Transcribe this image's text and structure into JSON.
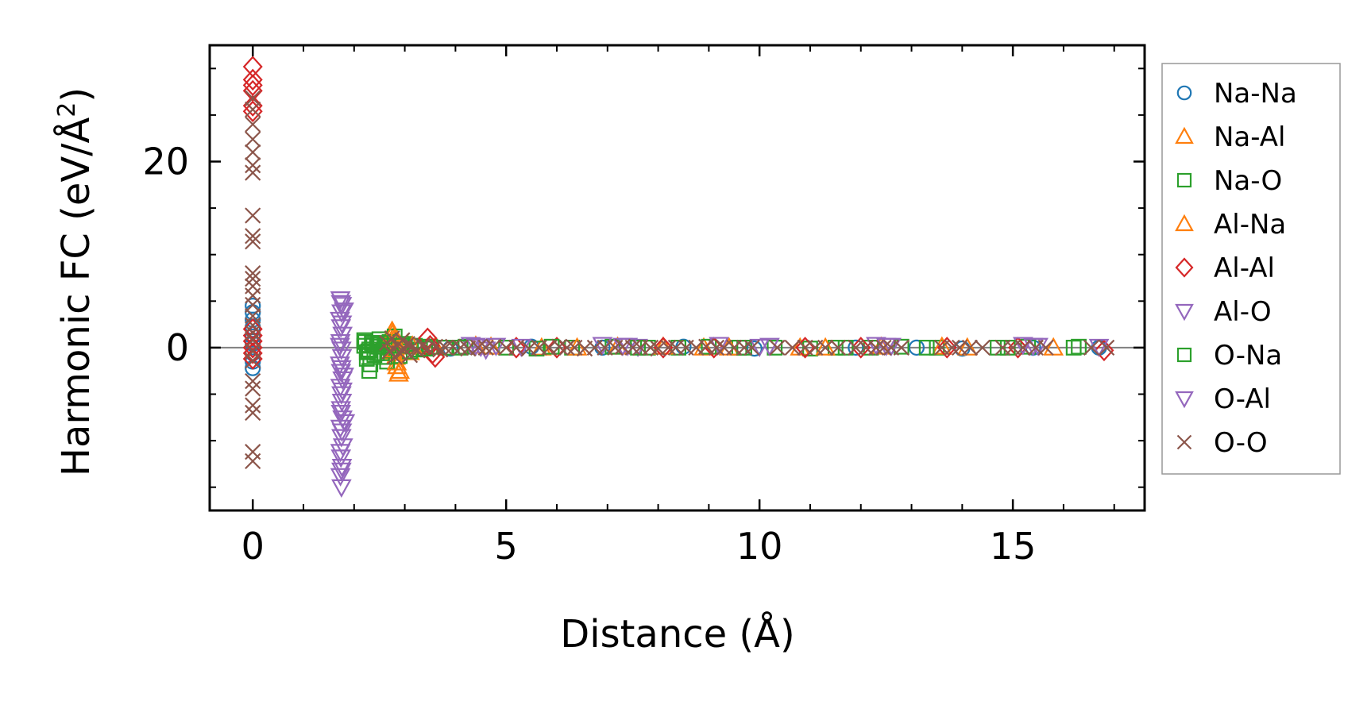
{
  "chart_data": {
    "type": "scatter",
    "xlabel": "Distance (Å)",
    "ylabel_main": "Harmonic FC (eV/Å",
    "ylabel_sup": "2",
    "ylabel_close": ")",
    "xlim": [
      -0.85,
      17.6
    ],
    "ylim": [
      -17.5,
      32.5
    ],
    "x_ticks": [
      0,
      5,
      10,
      15
    ],
    "x_tick_labels": [
      "0",
      "5",
      "10",
      "15"
    ],
    "x_minor_step": 1,
    "y_ticks": [
      0,
      20
    ],
    "y_tick_labels": [
      "0",
      "20"
    ],
    "y_minor_step": 5,
    "zero_line": true,
    "grid": false,
    "legend_position": "right, outside",
    "series": [
      {
        "name": "Na-Na",
        "marker": "circle",
        "color": "#1f77b4",
        "points": [
          [
            0,
            4.5
          ],
          [
            0,
            3.8
          ],
          [
            0,
            3.0
          ],
          [
            0,
            2.2
          ],
          [
            0,
            1.2
          ],
          [
            0,
            0.4
          ],
          [
            0,
            -0.6
          ],
          [
            0,
            -1.5
          ],
          [
            0,
            -2.2
          ],
          [
            3.2,
            0.1
          ],
          [
            3.9,
            -0.1
          ],
          [
            5.5,
            0.1
          ],
          [
            6.9,
            0.0
          ],
          [
            8.5,
            0.1
          ],
          [
            9.9,
            -0.1
          ],
          [
            11.9,
            0.0
          ],
          [
            13.1,
            0.0
          ],
          [
            14.0,
            -0.1
          ],
          [
            15.4,
            0.0
          ],
          [
            16.7,
            0.0
          ]
        ]
      },
      {
        "name": "Na-Al",
        "marker": "triangle-up",
        "color": "#ff7f0e",
        "points": [
          [
            2.75,
            1.8
          ],
          [
            2.78,
            1.2
          ],
          [
            2.8,
            0.6
          ],
          [
            2.8,
            -0.4
          ],
          [
            2.82,
            -1.0
          ],
          [
            2.85,
            -2.0
          ],
          [
            2.88,
            -2.8
          ],
          [
            3.05,
            0.4
          ],
          [
            3.1,
            -0.5
          ],
          [
            3.6,
            0.1
          ],
          [
            4.4,
            0.2
          ],
          [
            5.7,
            0.0
          ],
          [
            7.2,
            0.1
          ],
          [
            8.9,
            0.0
          ],
          [
            10.8,
            0.0
          ],
          [
            12.4,
            0.1
          ],
          [
            14.1,
            0.0
          ]
        ]
      },
      {
        "name": "Na-O",
        "marker": "square",
        "color": "#2ca02c",
        "points": [
          [
            2.2,
            0.8
          ],
          [
            2.2,
            0.2
          ],
          [
            2.25,
            -0.5
          ],
          [
            2.25,
            -1.2
          ],
          [
            2.3,
            -2.5
          ],
          [
            2.3,
            -0.2
          ],
          [
            2.35,
            0.5
          ],
          [
            2.4,
            -0.8
          ],
          [
            2.45,
            0.1
          ],
          [
            2.5,
            0.9
          ],
          [
            2.55,
            -0.6
          ],
          [
            2.6,
            0.3
          ],
          [
            2.65,
            -1.5
          ],
          [
            2.7,
            0.6
          ],
          [
            2.75,
            -0.3
          ],
          [
            2.8,
            1.2
          ],
          [
            2.9,
            -0.9
          ],
          [
            3.0,
            0.4
          ],
          [
            3.1,
            -0.4
          ],
          [
            3.2,
            0.2
          ],
          [
            3.3,
            -0.2
          ],
          [
            3.5,
            0.1
          ],
          [
            3.8,
            0.0
          ],
          [
            4.2,
            0.1
          ],
          [
            5.0,
            0.0
          ],
          [
            5.6,
            -0.1
          ],
          [
            6.3,
            0.0
          ],
          [
            7.1,
            0.1
          ],
          [
            7.8,
            0.0
          ],
          [
            8.4,
            0.0
          ],
          [
            9.0,
            0.1
          ],
          [
            9.6,
            0.0
          ],
          [
            10.3,
            0.0
          ],
          [
            11.0,
            -0.1
          ],
          [
            11.5,
            0.0
          ],
          [
            12.2,
            0.0
          ],
          [
            12.8,
            0.1
          ],
          [
            13.5,
            0.0
          ],
          [
            14.7,
            0.0
          ],
          [
            15.3,
            0.1
          ],
          [
            16.2,
            0.0
          ]
        ]
      },
      {
        "name": "Al-Na",
        "marker": "triangle-up",
        "color": "#ff7f0e",
        "points": [
          [
            2.76,
            1.5
          ],
          [
            2.79,
            0.9
          ],
          [
            2.81,
            -0.2
          ],
          [
            2.84,
            -1.6
          ],
          [
            2.9,
            -2.5
          ],
          [
            3.15,
            0.2
          ],
          [
            4.7,
            0.1
          ],
          [
            6.4,
            0.0
          ],
          [
            8.1,
            0.1
          ],
          [
            9.4,
            0.0
          ],
          [
            11.3,
            0.0
          ],
          [
            13.6,
            0.1
          ],
          [
            15.8,
            0.0
          ]
        ]
      },
      {
        "name": "Al-Al",
        "marker": "diamond",
        "color": "#d62728",
        "points": [
          [
            0,
            30.2
          ],
          [
            0,
            28.8
          ],
          [
            0,
            28.2
          ],
          [
            0,
            27.6
          ],
          [
            0,
            26.0
          ],
          [
            0,
            25.4
          ],
          [
            0,
            2.0
          ],
          [
            0,
            1.3
          ],
          [
            0,
            0.7
          ],
          [
            0,
            0.0
          ],
          [
            0,
            -0.6
          ],
          [
            0,
            -1.2
          ],
          [
            3.45,
            1.0
          ],
          [
            3.5,
            0.2
          ],
          [
            3.55,
            -0.6
          ],
          [
            3.6,
            -1.0
          ],
          [
            5.2,
            0.0
          ],
          [
            6.0,
            0.0
          ],
          [
            8.1,
            0.0
          ],
          [
            9.1,
            0.0
          ],
          [
            10.9,
            0.0
          ],
          [
            12.0,
            0.0
          ],
          [
            13.7,
            0.0
          ],
          [
            15.1,
            0.0
          ],
          [
            16.8,
            -0.3
          ]
        ]
      },
      {
        "name": "Al-O",
        "marker": "triangle-down",
        "color": "#9467bd",
        "points": [
          [
            1.73,
            5.2
          ],
          [
            1.76,
            4.6
          ],
          [
            1.75,
            3.8
          ],
          [
            1.72,
            3.0
          ],
          [
            1.74,
            2.2
          ],
          [
            1.77,
            1.4
          ],
          [
            1.73,
            0.6
          ],
          [
            1.75,
            -0.2
          ],
          [
            1.76,
            -1.0
          ],
          [
            1.72,
            -1.8
          ],
          [
            1.74,
            -2.6
          ],
          [
            1.77,
            -3.4
          ],
          [
            1.73,
            -4.2
          ],
          [
            1.75,
            -5.0
          ],
          [
            1.76,
            -5.8
          ],
          [
            1.74,
            -6.6
          ],
          [
            1.77,
            -7.6
          ],
          [
            1.73,
            -8.6
          ],
          [
            1.75,
            -9.6
          ],
          [
            1.78,
            -10.6
          ],
          [
            1.74,
            -11.8
          ],
          [
            1.76,
            -12.8
          ],
          [
            1.73,
            -13.8
          ],
          [
            1.75,
            -15.0
          ],
          [
            1.8,
            4.0
          ],
          [
            1.8,
            -3.0
          ],
          [
            1.82,
            -8.0
          ],
          [
            4.3,
            0.3
          ],
          [
            4.5,
            0.1
          ],
          [
            4.6,
            -0.2
          ],
          [
            4.8,
            0.2
          ],
          [
            6.9,
            0.3
          ],
          [
            7.3,
            0.2
          ],
          [
            7.6,
            0.1
          ],
          [
            9.2,
            0.3
          ],
          [
            10.2,
            0.2
          ],
          [
            12.3,
            0.3
          ],
          [
            12.6,
            0.2
          ],
          [
            15.2,
            0.3
          ],
          [
            15.5,
            0.2
          ],
          [
            16.7,
            0.1
          ]
        ]
      },
      {
        "name": "O-Na",
        "marker": "square",
        "color": "#2ca02c",
        "points": [
          [
            2.22,
            0.6
          ],
          [
            2.28,
            -0.4
          ],
          [
            2.32,
            -1.8
          ],
          [
            2.38,
            0.3
          ],
          [
            2.45,
            -0.6
          ],
          [
            2.52,
            0.5
          ],
          [
            2.6,
            -1.0
          ],
          [
            2.68,
            0.2
          ],
          [
            2.95,
            0.2
          ],
          [
            3.4,
            -0.1
          ],
          [
            4.1,
            0.0
          ],
          [
            5.9,
            0.1
          ],
          [
            7.6,
            0.0
          ],
          [
            9.7,
            0.0
          ],
          [
            11.7,
            0.0
          ],
          [
            13.3,
            0.0
          ],
          [
            14.9,
            0.0
          ],
          [
            16.3,
            0.1
          ]
        ]
      },
      {
        "name": "O-Al",
        "marker": "triangle-down",
        "color": "#9467bd",
        "points": [
          [
            1.74,
            4.8
          ],
          [
            1.76,
            2.6
          ],
          [
            1.72,
            0.2
          ],
          [
            1.75,
            -2.2
          ],
          [
            1.77,
            -4.6
          ],
          [
            1.74,
            -7.0
          ],
          [
            1.76,
            -9.0
          ],
          [
            1.73,
            -11.2
          ],
          [
            1.75,
            -13.2
          ],
          [
            4.4,
            0.2
          ],
          [
            5.3,
            0.1
          ],
          [
            7.4,
            0.2
          ],
          [
            10.0,
            0.1
          ],
          [
            12.5,
            0.2
          ],
          [
            15.4,
            0.2
          ]
        ]
      },
      {
        "name": "O-O",
        "marker": "x",
        "color": "#8c564b",
        "points": [
          [
            0,
            26.8
          ],
          [
            0,
            25.6
          ],
          [
            0,
            24.0
          ],
          [
            0,
            22.4
          ],
          [
            0,
            21.0
          ],
          [
            0,
            19.6
          ],
          [
            0,
            18.8
          ],
          [
            0,
            14.2
          ],
          [
            0,
            12.0
          ],
          [
            0,
            11.4
          ],
          [
            0,
            8.0
          ],
          [
            0,
            7.4
          ],
          [
            0,
            6.6
          ],
          [
            0,
            5.6
          ],
          [
            0,
            4.6
          ],
          [
            0,
            3.4
          ],
          [
            0,
            2.4
          ],
          [
            0,
            1.6
          ],
          [
            0,
            0.8
          ],
          [
            0,
            -0.4
          ],
          [
            0,
            -1.4
          ],
          [
            0,
            -3.6
          ],
          [
            0,
            -4.4
          ],
          [
            0,
            -6.2
          ],
          [
            0,
            -7.0
          ],
          [
            0,
            -11.2
          ],
          [
            0,
            -12.2
          ],
          [
            2.65,
            0.5
          ],
          [
            2.7,
            -0.4
          ],
          [
            2.75,
            1.0
          ],
          [
            2.8,
            -1.0
          ],
          [
            2.85,
            0.2
          ],
          [
            2.9,
            -0.6
          ],
          [
            2.95,
            0.8
          ],
          [
            3.0,
            -0.2
          ],
          [
            3.05,
            0.4
          ],
          [
            3.1,
            -0.8
          ],
          [
            3.15,
            0.1
          ],
          [
            3.25,
            -0.3
          ],
          [
            3.35,
            0.2
          ],
          [
            3.45,
            -0.1
          ],
          [
            3.6,
            0.1
          ],
          [
            3.7,
            -0.2
          ],
          [
            3.8,
            0.0
          ],
          [
            3.95,
            0.1
          ],
          [
            4.1,
            0.0
          ],
          [
            4.25,
            -0.1
          ],
          [
            4.45,
            0.0
          ],
          [
            4.6,
            0.0
          ],
          [
            4.75,
            0.1
          ],
          [
            5.0,
            0.0
          ],
          [
            5.2,
            0.0
          ],
          [
            5.45,
            -0.1
          ],
          [
            5.65,
            0.0
          ],
          [
            5.85,
            0.0
          ],
          [
            6.05,
            0.1
          ],
          [
            6.2,
            0.0
          ],
          [
            6.35,
            0.0
          ],
          [
            6.55,
            -0.1
          ],
          [
            6.75,
            0.0
          ],
          [
            6.95,
            0.0
          ],
          [
            7.15,
            0.0
          ],
          [
            7.3,
            0.1
          ],
          [
            7.5,
            0.0
          ],
          [
            7.65,
            0.0
          ],
          [
            7.85,
            0.0
          ],
          [
            8.0,
            -0.1
          ],
          [
            8.2,
            0.0
          ],
          [
            8.35,
            0.0
          ],
          [
            8.55,
            0.0
          ],
          [
            8.75,
            0.0
          ],
          [
            8.95,
            0.1
          ],
          [
            9.15,
            0.0
          ],
          [
            9.3,
            0.0
          ],
          [
            9.5,
            0.0
          ],
          [
            9.7,
            0.0
          ],
          [
            9.85,
            0.0
          ],
          [
            10.35,
            0.0
          ],
          [
            10.65,
            0.0
          ],
          [
            10.9,
            0.0
          ],
          [
            11.1,
            0.0
          ],
          [
            11.3,
            0.0
          ],
          [
            11.55,
            0.0
          ],
          [
            11.9,
            0.0
          ],
          [
            12.1,
            0.0
          ],
          [
            12.3,
            0.0
          ],
          [
            12.45,
            0.0
          ],
          [
            12.6,
            0.0
          ],
          [
            12.8,
            0.0
          ],
          [
            13.6,
            0.0
          ],
          [
            13.8,
            0.0
          ],
          [
            13.95,
            0.0
          ],
          [
            14.15,
            0.0
          ],
          [
            14.4,
            0.0
          ],
          [
            14.8,
            0.0
          ],
          [
            15.0,
            0.0
          ],
          [
            15.2,
            0.0
          ],
          [
            15.45,
            0.0
          ],
          [
            15.65,
            0.0
          ],
          [
            16.55,
            0.0
          ],
          [
            16.85,
            0.0
          ]
        ]
      }
    ]
  }
}
